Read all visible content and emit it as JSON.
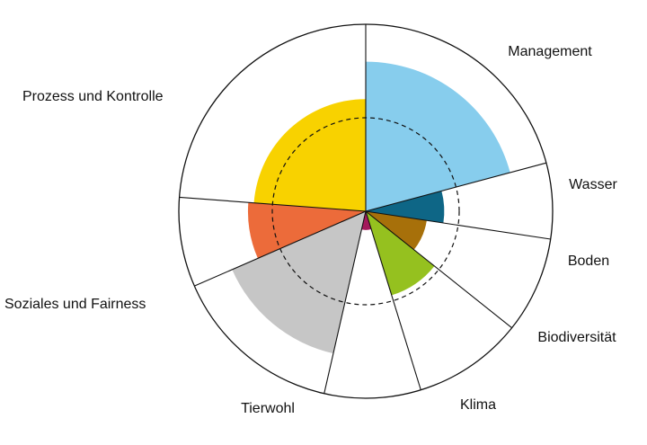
{
  "chart_data": {
    "type": "polar-area",
    "title": "",
    "reference_circle": "dashed",
    "segments": [
      {
        "label": "Management",
        "value": 0.8,
        "color": "#87CDED",
        "weight": 0.175
      },
      {
        "label": "Wasser",
        "value": 0.42,
        "color": "#0E6686",
        "weight": 0.055
      },
      {
        "label": "Boden",
        "value": 0.33,
        "color": "#A7700A",
        "weight": 0.07
      },
      {
        "label": "Biodiversität",
        "value": 0.47,
        "color": "#95C11F",
        "weight": 0.08
      },
      {
        "label": "Klima",
        "value": 0.1,
        "color": "#A3195B",
        "weight": 0.07
      },
      {
        "label": "Tierwohl",
        "value": 0.78,
        "color": "#C6C6C6",
        "weight": 0.125
      },
      {
        "label": "Soziales und Fairness",
        "value": 0.63,
        "color": "#EC6B3A",
        "weight": 0.065
      },
      {
        "label": "Prozess und Kontrolle",
        "value": 0.6,
        "color": "#F8D200",
        "weight": 0.2
      }
    ]
  }
}
